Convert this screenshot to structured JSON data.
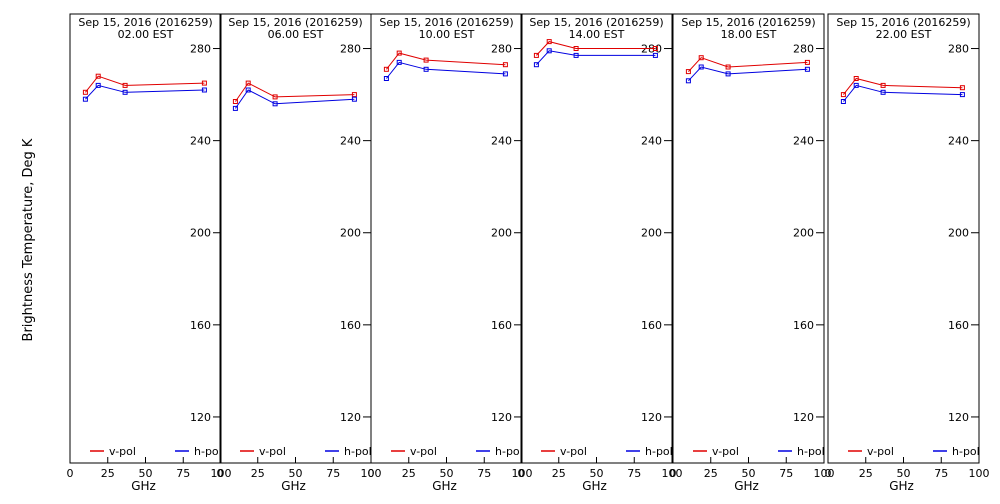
{
  "ylabel": "Brightness Temperature, Deg K",
  "xlabel": "GHz",
  "chart_data": {
    "type": "line",
    "ylim": [
      100,
      295
    ],
    "yticks": [
      120,
      160,
      200,
      240,
      280
    ],
    "xlim": [
      0,
      100
    ],
    "xticks": [
      0,
      25,
      50,
      75,
      100
    ],
    "x_tick_labels": [
      "0",
      "25",
      "50",
      "75",
      "100"
    ],
    "legend": [
      {
        "name": "v-pol",
        "color": "#e00000"
      },
      {
        "name": "h-pol",
        "color": "#0000e0"
      }
    ],
    "grid": false,
    "panels": [
      {
        "title1": "Sep 15, 2016 (2016259)",
        "title2": "02.00 EST",
        "x": [
          10.2,
          18.7,
          36.5,
          89.0
        ],
        "series": [
          {
            "name": "v-pol",
            "values": [
              261,
              268,
              264,
              265
            ]
          },
          {
            "name": "h-pol",
            "values": [
              258,
              264,
              261,
              262
            ]
          }
        ]
      },
      {
        "title1": "Sep 15, 2016 (2016259)",
        "title2": "06.00 EST",
        "x": [
          10.2,
          18.7,
          36.5,
          89.0
        ],
        "series": [
          {
            "name": "v-pol",
            "values": [
              257,
              265,
              259,
              260
            ]
          },
          {
            "name": "h-pol",
            "values": [
              254,
              262,
              256,
              258
            ]
          }
        ]
      },
      {
        "title1": "Sep 15, 2016 (2016259)",
        "title2": "10.00 EST",
        "x": [
          10.2,
          18.7,
          36.5,
          89.0
        ],
        "series": [
          {
            "name": "v-pol",
            "values": [
              271,
              278,
              275,
              273
            ]
          },
          {
            "name": "h-pol",
            "values": [
              267,
              274,
              271,
              269
            ]
          }
        ]
      },
      {
        "title1": "Sep 15, 2016 (2016259)",
        "title2": "14.00 EST",
        "x": [
          10.2,
          18.7,
          36.5,
          89.0
        ],
        "series": [
          {
            "name": "v-pol",
            "values": [
              277,
              283,
              280,
              280
            ]
          },
          {
            "name": "h-pol",
            "values": [
              273,
              279,
              277,
              277
            ]
          }
        ]
      },
      {
        "title1": "Sep 15, 2016 (2016259)",
        "title2": "18.00 EST",
        "x": [
          10.2,
          18.7,
          36.5,
          89.0
        ],
        "series": [
          {
            "name": "v-pol",
            "values": [
              270,
              276,
              272,
              274
            ]
          },
          {
            "name": "h-pol",
            "values": [
              266,
              272,
              269,
              271
            ]
          }
        ]
      },
      {
        "title1": "Sep 15, 2016 (2016259)",
        "title2": "22.00 EST",
        "x": [
          10.2,
          18.7,
          36.5,
          89.0
        ],
        "series": [
          {
            "name": "v-pol",
            "values": [
              260,
              267,
              264,
              263
            ]
          },
          {
            "name": "h-pol",
            "values": [
              257,
              264,
              261,
              260
            ]
          }
        ]
      }
    ]
  }
}
